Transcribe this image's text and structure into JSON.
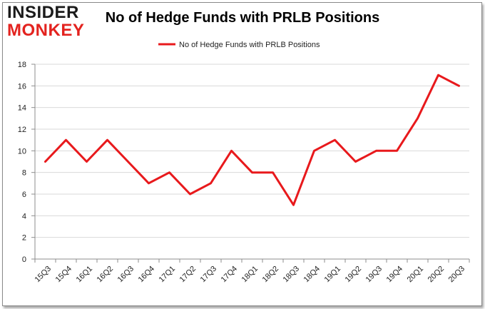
{
  "brand": {
    "line1": "INSIDER",
    "line2": "MONKEY",
    "accent_color": "#e3231f"
  },
  "chart_data": {
    "type": "line",
    "title": "No of Hedge Funds with PRLB Positions",
    "xlabel": "",
    "ylabel": "",
    "legend": {
      "position": "top-center",
      "label": "No of Hedge Funds with PRLB Positions"
    },
    "grid": true,
    "ylim": [
      0,
      18
    ],
    "yticks": [
      0,
      2,
      4,
      6,
      8,
      10,
      12,
      14,
      16,
      18
    ],
    "categories": [
      "15Q3",
      "15Q4",
      "16Q1",
      "16Q2",
      "16Q3",
      "16Q4",
      "17Q1",
      "17Q2",
      "17Q3",
      "17Q4",
      "18Q1",
      "18Q2",
      "18Q3",
      "18Q4",
      "19Q1",
      "19Q2",
      "19Q3",
      "19Q4",
      "20Q1",
      "20Q2",
      "20Q3"
    ],
    "series": [
      {
        "name": "No of Hedge Funds with PRLB Positions",
        "color": "#e8191c",
        "values": [
          9,
          11,
          9,
          11,
          9,
          7,
          8,
          6,
          7,
          10,
          8,
          8,
          5,
          10,
          11,
          9,
          10,
          10,
          13,
          17,
          16
        ]
      }
    ]
  }
}
